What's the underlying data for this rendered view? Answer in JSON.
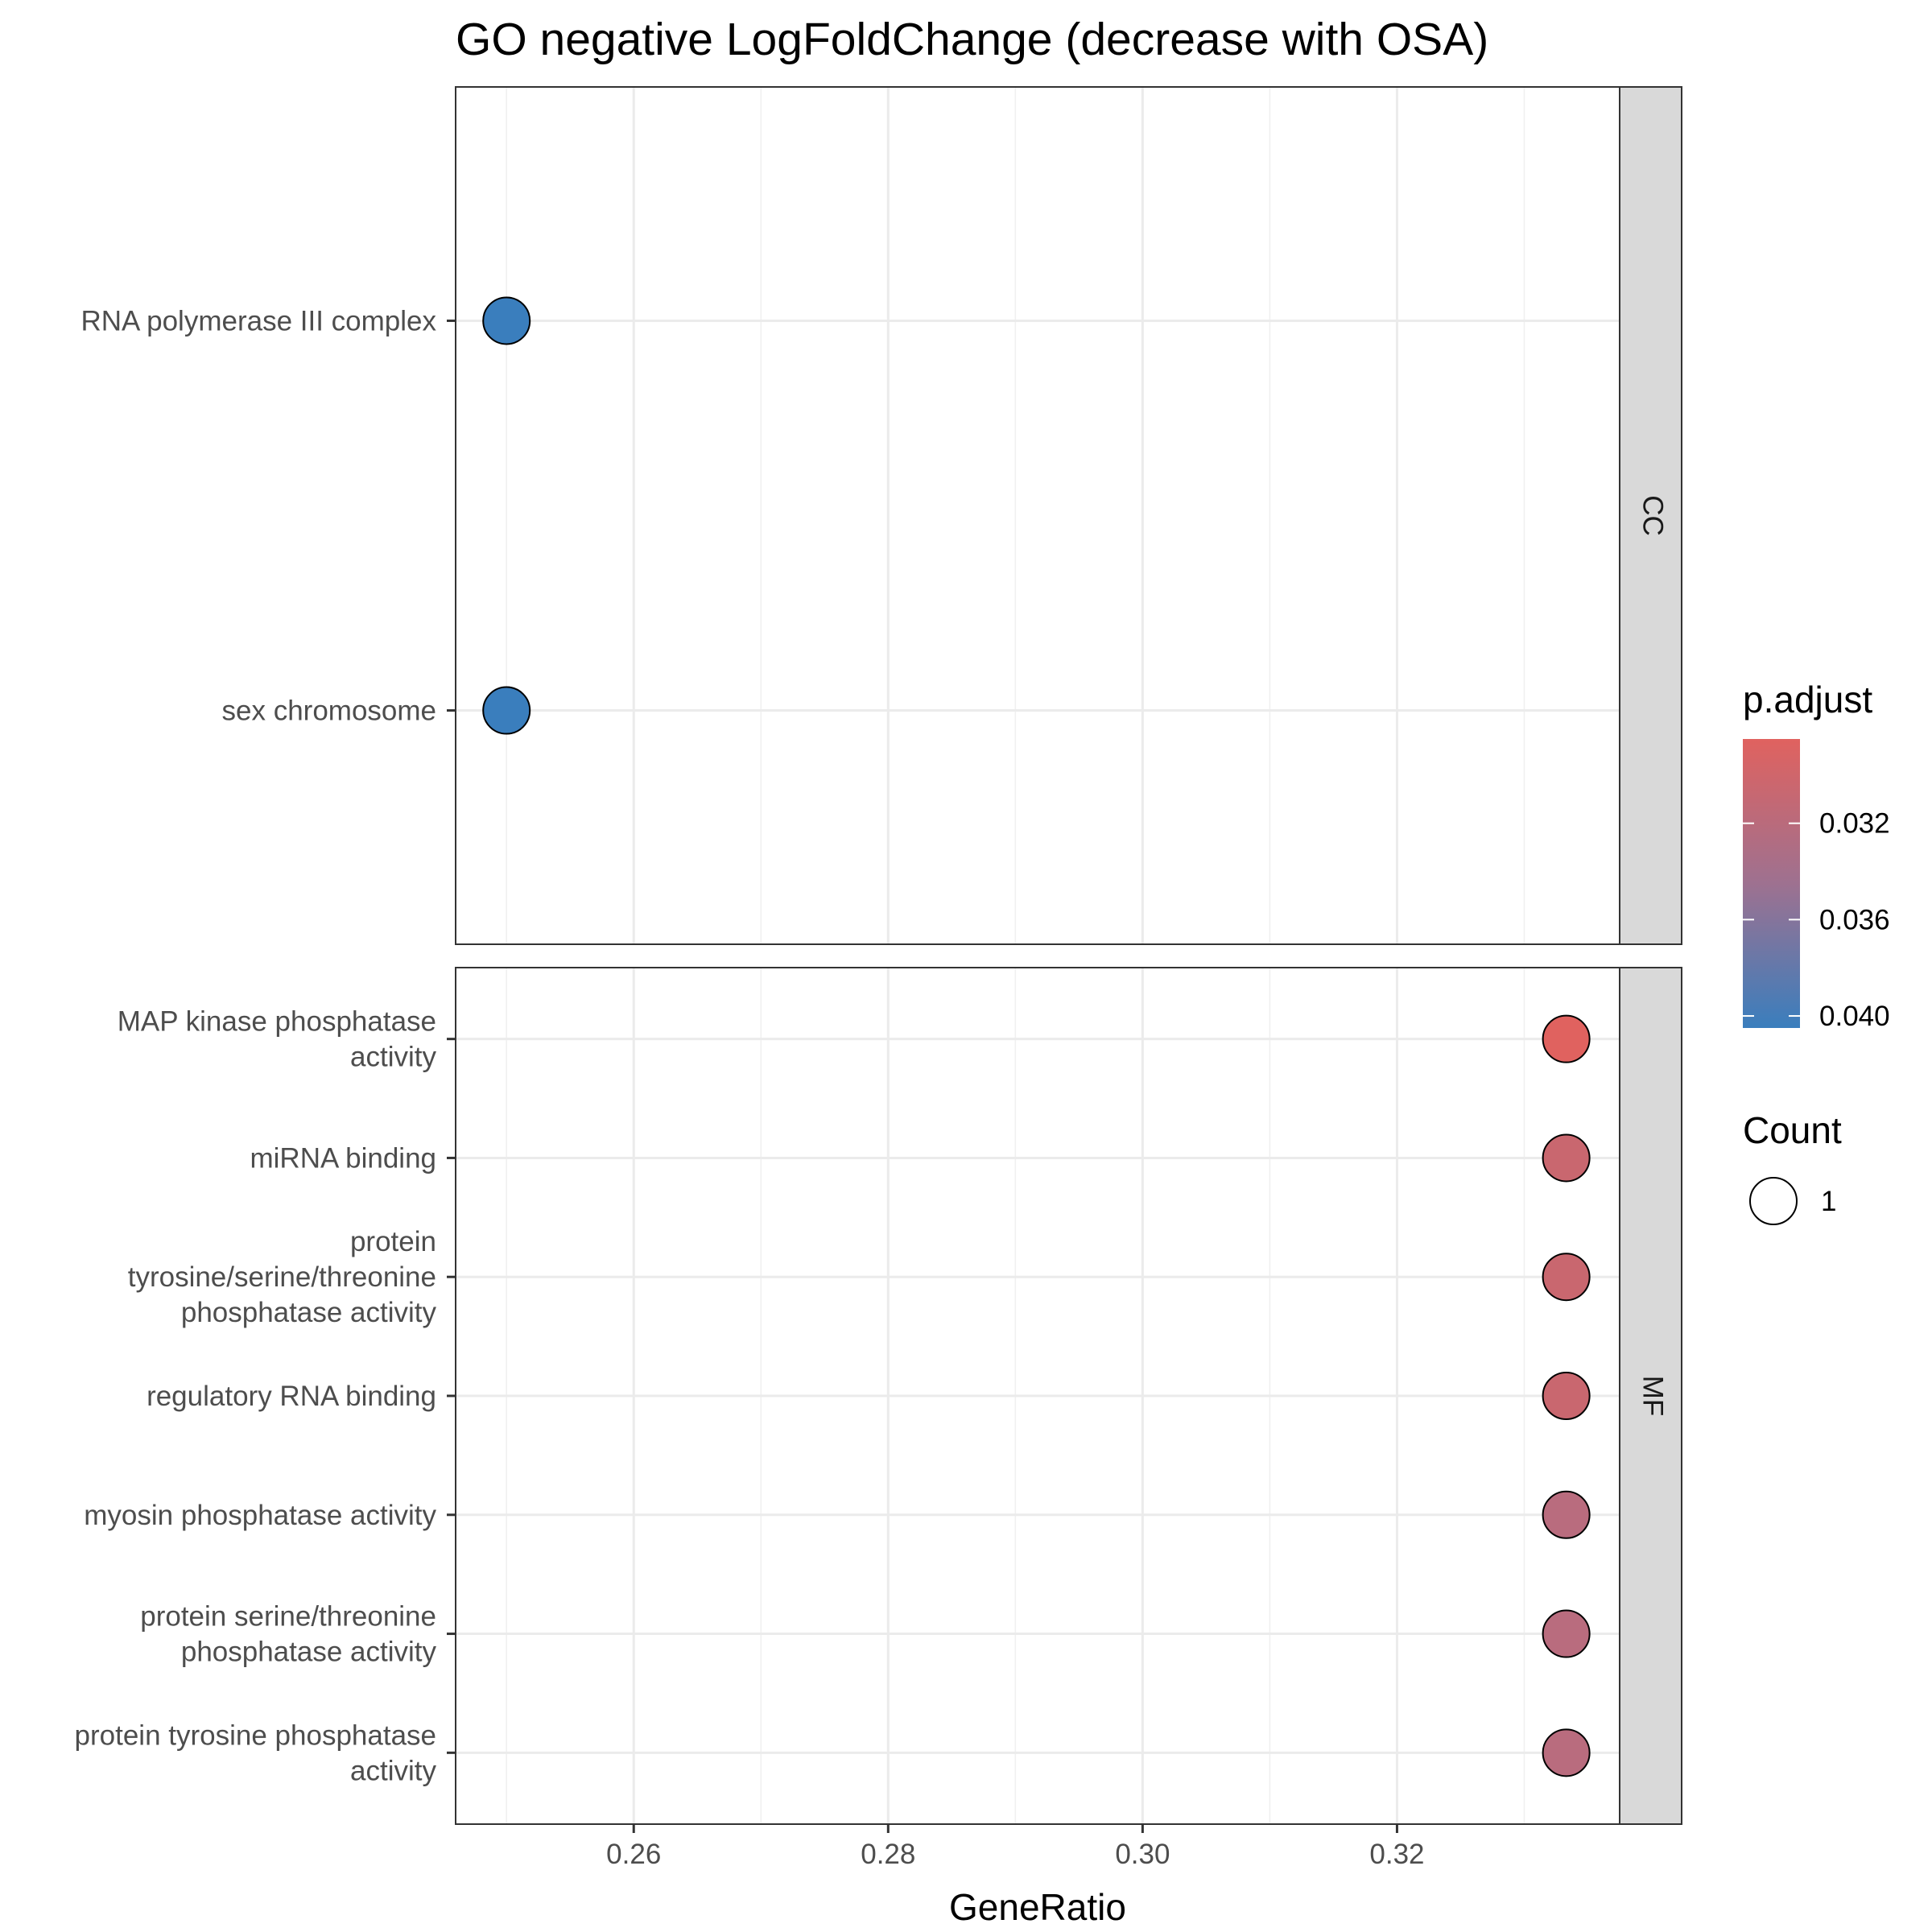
{
  "chart_data": {
    "type": "scatter",
    "title": "GO negative LogFoldChange (decrease with OSA)",
    "xlabel": "GeneRatio",
    "ylabel": "",
    "xlim": [
      0.246,
      0.3375
    ],
    "x_ticks": [
      "0.26",
      "0.28",
      "0.30",
      "0.32"
    ],
    "x_tick_values": [
      0.26,
      0.28,
      0.3,
      0.32
    ],
    "grid": true,
    "legend_position": "right",
    "facets": [
      {
        "name": "CC",
        "points": [
          {
            "term": [
              "RNA polymerase III complex"
            ],
            "gene_ratio": 0.25,
            "p_adjust": 0.0405,
            "count": 1,
            "color": "#3a7ebd"
          },
          {
            "term": [
              "sex chromosome"
            ],
            "gene_ratio": 0.25,
            "p_adjust": 0.0405,
            "count": 1,
            "color": "#3a7ebd"
          }
        ]
      },
      {
        "name": "MF",
        "points": [
          {
            "term": [
              "MAP kinase phosphatase",
              "activity"
            ],
            "gene_ratio": 0.3333,
            "p_adjust": 0.0285,
            "count": 1,
            "color": "#e0625f"
          },
          {
            "term": [
              "miRNA binding"
            ],
            "gene_ratio": 0.3333,
            "p_adjust": 0.0313,
            "count": 1,
            "color": "#c9676f"
          },
          {
            "term": [
              "protein",
              "tyrosine/serine/threonine",
              "phosphatase activity"
            ],
            "gene_ratio": 0.3333,
            "p_adjust": 0.0313,
            "count": 1,
            "color": "#c9676f"
          },
          {
            "term": [
              "regulatory RNA binding"
            ],
            "gene_ratio": 0.3333,
            "p_adjust": 0.0313,
            "count": 1,
            "color": "#c9676f"
          },
          {
            "term": [
              "myosin phosphatase activity"
            ],
            "gene_ratio": 0.3333,
            "p_adjust": 0.0328,
            "count": 1,
            "color": "#b96c7e"
          },
          {
            "term": [
              "protein serine/threonine",
              "phosphatase activity"
            ],
            "gene_ratio": 0.3333,
            "p_adjust": 0.0328,
            "count": 1,
            "color": "#b96c7e"
          },
          {
            "term": [
              "protein tyrosine phosphatase",
              "activity"
            ],
            "gene_ratio": 0.3333,
            "p_adjust": 0.0328,
            "count": 1,
            "color": "#b96c7e"
          }
        ]
      }
    ],
    "color_legend": {
      "title": "p.adjust",
      "low_color": "#e0625f",
      "high_color": "#3a7ebd",
      "min": 0.0285,
      "max": 0.0405,
      "breaks": [
        0.032,
        0.036,
        0.04
      ],
      "break_labels": [
        "0.032",
        "0.036",
        "0.040"
      ]
    },
    "size_legend": {
      "title": "Count",
      "items": [
        {
          "value": 1,
          "label": "1"
        }
      ]
    }
  }
}
